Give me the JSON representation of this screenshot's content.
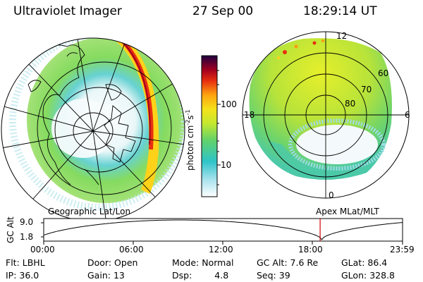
{
  "header": {
    "title": "Ultraviolet Imager",
    "date": "27 Sep 00",
    "time": "18:29:14 UT"
  },
  "colorbar": {
    "axis_label": "photon cm",
    "unit_exp1": "-2",
    "unit_mid": "s",
    "unit_exp2": "-1",
    "tick_labels": [
      "100",
      "10"
    ]
  },
  "left_panel": {
    "caption": "Geographic Lat/Lon"
  },
  "right_panel": {
    "caption": "Apex MLat/MLT",
    "mlt_labels": {
      "top": "12",
      "left": "18",
      "right": "6",
      "bottom": "0"
    },
    "lat_labels": [
      "60",
      "70",
      "80"
    ]
  },
  "altitude_plot": {
    "ylabel": "GC Alt",
    "ytick_labels": [
      "9.0",
      "1.8"
    ],
    "xtick_labels": [
      "00:00",
      "06:00",
      "12:00",
      "18:00",
      "23:59"
    ],
    "marker_color": "#d00000"
  },
  "status": {
    "filter_label": "Flt:",
    "filter_value": "LBHL",
    "ip_label": "IP:",
    "ip_value": "36.0",
    "door_label": "Door:",
    "door_value": "Open",
    "gain_label": "Gain:",
    "gain_value": "13",
    "mode_label": "Mode:",
    "mode_value": "Normal",
    "dsp_label": "Dsp:",
    "dsp_value": "4.8",
    "gcalt_label": "GC Alt:",
    "gcalt_value": "7.6 Re",
    "seq_label": "Seq:",
    "seq_value": "39",
    "glat_label": "GLat:",
    "glat_value": "86.4",
    "glon_label": "GLon:",
    "glon_value": "328.8"
  },
  "colors": {
    "scale": [
      "#ffffff",
      "#8fd7e8",
      "#2ec4c8",
      "#7ed957",
      "#d6ee2a",
      "#ffd21a",
      "#ff9a10",
      "#e83010",
      "#a00020",
      "#200040"
    ]
  }
}
